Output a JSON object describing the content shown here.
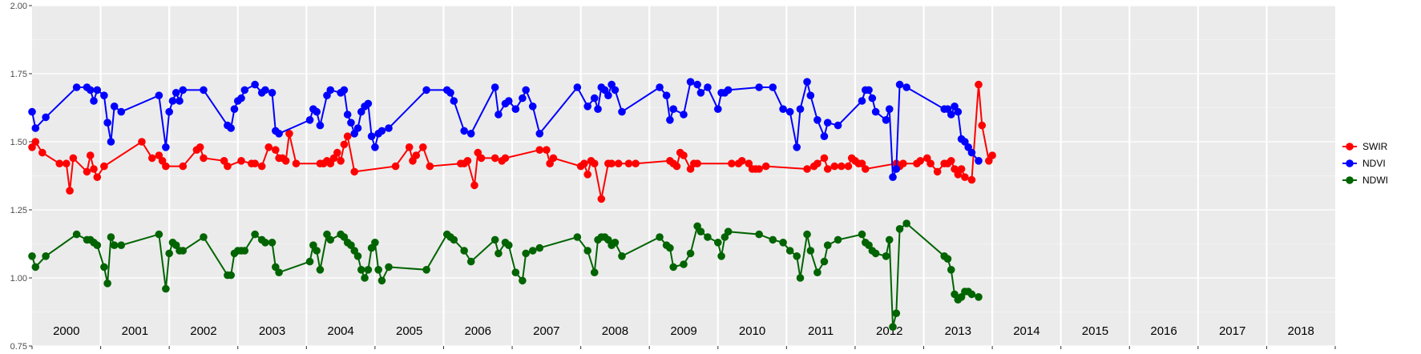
{
  "chart_data": {
    "type": "line",
    "title": "",
    "xlabel": "",
    "ylabel": "",
    "xlim": [
      2000,
      2019
    ],
    "ylim": [
      0.75,
      2.0
    ],
    "yticks": [
      "0.75",
      "1.00",
      "1.25",
      "1.50",
      "1.75",
      "2.00"
    ],
    "ytick_values": [
      0.75,
      1.0,
      1.25,
      1.5,
      1.75,
      2.0
    ],
    "year_labels": [
      "2000",
      "2001",
      "2002",
      "2003",
      "2004",
      "2005",
      "2006",
      "2007",
      "2008",
      "2009",
      "2010",
      "2011",
      "2012",
      "2013",
      "2014",
      "2015",
      "2016",
      "2017",
      "2018"
    ],
    "grid": true,
    "legend_position": "right",
    "series": [
      {
        "name": "SWIR",
        "color": "#ff0000",
        "x": [
          2000.0,
          2000.05,
          2000.15,
          2000.4,
          2000.5,
          2000.55,
          2000.6,
          2000.8,
          2000.85,
          2000.9,
          2000.95,
          2001.05,
          2001.6,
          2001.75,
          2001.85,
          2001.9,
          2001.95,
          2002.2,
          2002.4,
          2002.45,
          2002.5,
          2002.8,
          2002.85,
          2003.05,
          2003.2,
          2003.25,
          2003.35,
          2003.45,
          2003.55,
          2003.6,
          2003.65,
          2003.7,
          2003.75,
          2003.85,
          2004.2,
          2004.25,
          2004.3,
          2004.35,
          2004.4,
          2004.45,
          2004.5,
          2004.55,
          2004.6,
          2004.7,
          2005.3,
          2005.5,
          2005.55,
          2005.6,
          2005.7,
          2005.8,
          2006.25,
          2006.3,
          2006.35,
          2006.45,
          2006.5,
          2006.55,
          2006.75,
          2006.85,
          2006.9,
          2007.4,
          2007.5,
          2007.55,
          2007.6,
          2008.0,
          2008.05,
          2008.1,
          2008.15,
          2008.2,
          2008.3,
          2008.4,
          2008.45,
          2008.55,
          2008.7,
          2008.8,
          2009.3,
          2009.35,
          2009.4,
          2009.45,
          2009.5,
          2009.6,
          2009.65,
          2009.7,
          2010.2,
          2010.3,
          2010.35,
          2010.45,
          2010.5,
          2010.55,
          2010.6,
          2010.7,
          2011.3,
          2011.4,
          2011.45,
          2011.55,
          2011.6,
          2011.7,
          2011.8,
          2011.9,
          2011.95,
          2012.0,
          2012.05,
          2012.1,
          2012.15,
          2012.6,
          2012.65,
          2012.7,
          2012.9,
          2012.95,
          2013.05,
          2013.1,
          2013.2,
          2013.3,
          2013.35,
          2013.4,
          2013.45,
          2013.5,
          2013.55,
          2013.6,
          2013.7,
          2013.8,
          2013.85,
          2013.95,
          2014.0
        ],
        "values": [
          1.48,
          1.5,
          1.46,
          1.42,
          1.42,
          1.32,
          1.44,
          1.39,
          1.45,
          1.4,
          1.37,
          1.41,
          1.5,
          1.44,
          1.45,
          1.43,
          1.41,
          1.41,
          1.47,
          1.48,
          1.44,
          1.43,
          1.41,
          1.43,
          1.42,
          1.42,
          1.41,
          1.48,
          1.47,
          1.44,
          1.44,
          1.43,
          1.53,
          1.42,
          1.42,
          1.42,
          1.43,
          1.42,
          1.44,
          1.46,
          1.43,
          1.49,
          1.52,
          1.39,
          1.41,
          1.48,
          1.43,
          1.45,
          1.48,
          1.41,
          1.42,
          1.42,
          1.43,
          1.34,
          1.46,
          1.44,
          1.44,
          1.43,
          1.44,
          1.47,
          1.47,
          1.42,
          1.44,
          1.41,
          1.42,
          1.38,
          1.43,
          1.42,
          1.29,
          1.42,
          1.42,
          1.42,
          1.42,
          1.42,
          1.43,
          1.42,
          1.41,
          1.46,
          1.45,
          1.4,
          1.42,
          1.42,
          1.42,
          1.42,
          1.43,
          1.42,
          1.4,
          1.4,
          1.4,
          1.41,
          1.4,
          1.41,
          1.42,
          1.44,
          1.4,
          1.41,
          1.41,
          1.41,
          1.44,
          1.43,
          1.42,
          1.42,
          1.4,
          1.42,
          1.41,
          1.42,
          1.42,
          1.43,
          1.44,
          1.42,
          1.39,
          1.42,
          1.42,
          1.43,
          1.4,
          1.38,
          1.4,
          1.37,
          1.36,
          1.71,
          1.56,
          1.43,
          1.45
        ]
      },
      {
        "name": "NDVI",
        "color": "#0000ff",
        "x": [
          2000.0,
          2000.05,
          2000.2,
          2000.65,
          2000.8,
          2000.85,
          2000.9,
          2000.95,
          2001.05,
          2001.1,
          2001.15,
          2001.2,
          2001.3,
          2001.85,
          2001.95,
          2002.0,
          2002.05,
          2002.1,
          2002.15,
          2002.2,
          2002.5,
          2002.85,
          2002.9,
          2002.95,
          2003.0,
          2003.05,
          2003.1,
          2003.25,
          2003.35,
          2003.4,
          2003.5,
          2003.55,
          2003.6,
          2004.05,
          2004.1,
          2004.15,
          2004.2,
          2004.3,
          2004.35,
          2004.5,
          2004.55,
          2004.6,
          2004.65,
          2004.7,
          2004.75,
          2004.8,
          2004.85,
          2004.9,
          2004.95,
          2005.0,
          2005.05,
          2005.1,
          2005.2,
          2005.75,
          2006.05,
          2006.1,
          2006.15,
          2006.3,
          2006.4,
          2006.75,
          2006.8,
          2006.9,
          2006.95,
          2007.05,
          2007.15,
          2007.2,
          2007.3,
          2007.4,
          2007.95,
          2008.1,
          2008.2,
          2008.25,
          2008.3,
          2008.35,
          2008.4,
          2008.45,
          2008.5,
          2008.6,
          2009.15,
          2009.25,
          2009.3,
          2009.35,
          2009.5,
          2009.6,
          2009.7,
          2009.75,
          2009.85,
          2010.0,
          2010.05,
          2010.1,
          2010.15,
          2010.6,
          2010.8,
          2010.95,
          2011.05,
          2011.15,
          2011.2,
          2011.3,
          2011.35,
          2011.45,
          2011.55,
          2011.6,
          2011.75,
          2012.1,
          2012.15,
          2012.2,
          2012.25,
          2012.3,
          2012.45,
          2012.5,
          2012.55,
          2012.6,
          2012.65,
          2012.75,
          2013.3,
          2013.35,
          2013.4,
          2013.45,
          2013.5,
          2013.55,
          2013.6,
          2013.65,
          2013.7,
          2013.8
        ],
        "values": [
          1.61,
          1.55,
          1.59,
          1.7,
          1.7,
          1.69,
          1.65,
          1.69,
          1.67,
          1.57,
          1.5,
          1.63,
          1.61,
          1.67,
          1.48,
          1.61,
          1.65,
          1.68,
          1.65,
          1.69,
          1.69,
          1.56,
          1.55,
          1.62,
          1.65,
          1.66,
          1.69,
          1.71,
          1.68,
          1.69,
          1.68,
          1.54,
          1.53,
          1.58,
          1.62,
          1.61,
          1.56,
          1.67,
          1.69,
          1.68,
          1.69,
          1.6,
          1.57,
          1.53,
          1.55,
          1.61,
          1.63,
          1.64,
          1.52,
          1.48,
          1.53,
          1.54,
          1.55,
          1.69,
          1.69,
          1.68,
          1.65,
          1.54,
          1.53,
          1.7,
          1.6,
          1.64,
          1.65,
          1.62,
          1.66,
          1.69,
          1.63,
          1.53,
          1.7,
          1.63,
          1.66,
          1.62,
          1.7,
          1.69,
          1.67,
          1.71,
          1.69,
          1.61,
          1.7,
          1.67,
          1.58,
          1.62,
          1.6,
          1.72,
          1.71,
          1.68,
          1.7,
          1.62,
          1.68,
          1.68,
          1.69,
          1.7,
          1.7,
          1.62,
          1.61,
          1.48,
          1.62,
          1.72,
          1.67,
          1.58,
          1.52,
          1.57,
          1.56,
          1.65,
          1.69,
          1.69,
          1.66,
          1.61,
          1.58,
          1.62,
          1.37,
          1.4,
          1.71,
          1.7,
          1.62,
          1.62,
          1.6,
          1.63,
          1.61,
          1.51,
          1.5,
          1.48,
          1.46,
          1.43
        ]
      },
      {
        "name": "NDWI",
        "color": "#006400",
        "x": [
          2000.0,
          2000.05,
          2000.2,
          2000.65,
          2000.8,
          2000.85,
          2000.9,
          2000.95,
          2001.05,
          2001.1,
          2001.15,
          2001.2,
          2001.3,
          2001.85,
          2001.95,
          2002.0,
          2002.05,
          2002.1,
          2002.15,
          2002.2,
          2002.5,
          2002.85,
          2002.9,
          2002.95,
          2003.0,
          2003.05,
          2003.1,
          2003.25,
          2003.35,
          2003.4,
          2003.5,
          2003.55,
          2003.6,
          2004.05,
          2004.1,
          2004.15,
          2004.2,
          2004.3,
          2004.35,
          2004.5,
          2004.55,
          2004.6,
          2004.65,
          2004.7,
          2004.75,
          2004.8,
          2004.85,
          2004.9,
          2004.95,
          2005.0,
          2005.05,
          2005.1,
          2005.2,
          2005.75,
          2006.05,
          2006.1,
          2006.15,
          2006.3,
          2006.4,
          2006.75,
          2006.8,
          2006.9,
          2006.95,
          2007.05,
          2007.15,
          2007.2,
          2007.3,
          2007.4,
          2007.95,
          2008.1,
          2008.2,
          2008.25,
          2008.3,
          2008.35,
          2008.4,
          2008.45,
          2008.5,
          2008.6,
          2009.15,
          2009.25,
          2009.3,
          2009.35,
          2009.5,
          2009.6,
          2009.7,
          2009.75,
          2009.85,
          2010.0,
          2010.05,
          2010.1,
          2010.15,
          2010.6,
          2010.8,
          2010.95,
          2011.05,
          2011.15,
          2011.2,
          2011.3,
          2011.35,
          2011.45,
          2011.55,
          2011.6,
          2011.75,
          2012.1,
          2012.15,
          2012.2,
          2012.25,
          2012.3,
          2012.45,
          2012.5,
          2012.55,
          2012.6,
          2012.65,
          2012.75,
          2013.3,
          2013.35,
          2013.4,
          2013.45,
          2013.5,
          2013.55,
          2013.6,
          2013.65,
          2013.7,
          2013.8
        ],
        "values": [
          1.08,
          1.04,
          1.08,
          1.16,
          1.14,
          1.14,
          1.13,
          1.12,
          1.04,
          0.98,
          1.15,
          1.12,
          1.12,
          1.16,
          0.96,
          1.09,
          1.13,
          1.12,
          1.1,
          1.1,
          1.15,
          1.01,
          1.01,
          1.09,
          1.1,
          1.1,
          1.1,
          1.16,
          1.14,
          1.13,
          1.13,
          1.04,
          1.02,
          1.06,
          1.12,
          1.1,
          1.03,
          1.16,
          1.14,
          1.16,
          1.15,
          1.13,
          1.12,
          1.1,
          1.08,
          1.03,
          1.0,
          1.03,
          1.11,
          1.13,
          1.03,
          0.99,
          1.04,
          1.03,
          1.16,
          1.15,
          1.14,
          1.1,
          1.06,
          1.14,
          1.09,
          1.13,
          1.12,
          1.02,
          0.99,
          1.09,
          1.1,
          1.11,
          1.15,
          1.1,
          1.02,
          1.14,
          1.15,
          1.15,
          1.14,
          1.12,
          1.13,
          1.08,
          1.15,
          1.12,
          1.11,
          1.04,
          1.05,
          1.09,
          1.19,
          1.17,
          1.15,
          1.13,
          1.08,
          1.15,
          1.17,
          1.16,
          1.14,
          1.13,
          1.1,
          1.08,
          1.0,
          1.16,
          1.1,
          1.02,
          1.06,
          1.12,
          1.14,
          1.16,
          1.13,
          1.12,
          1.1,
          1.09,
          1.08,
          1.14,
          0.82,
          0.87,
          1.18,
          1.2,
          1.08,
          1.07,
          1.03,
          0.94,
          0.92,
          0.93,
          0.95,
          0.95,
          0.94,
          0.93
        ]
      }
    ],
    "legend": [
      "SWIR",
      "NDVI",
      "NDWI"
    ]
  }
}
